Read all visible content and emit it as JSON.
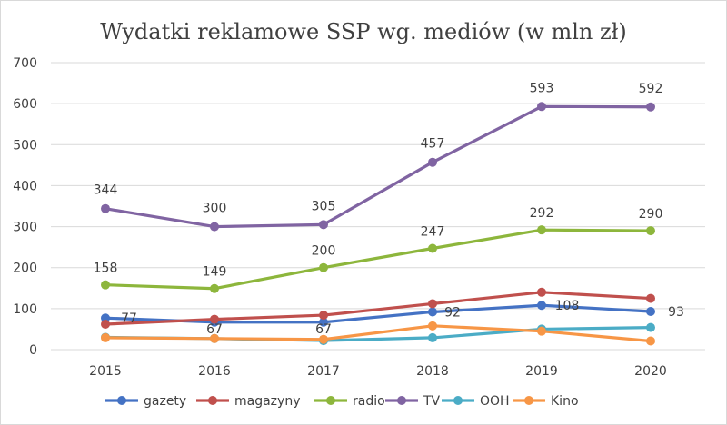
{
  "chart_data": {
    "type": "line",
    "title": "Wydatki reklamowe SSP wg. mediów (w mln zł)",
    "xlabel": "",
    "ylabel": "",
    "categories": [
      "2015",
      "2016",
      "2017",
      "2018",
      "2019",
      "2020"
    ],
    "ylim": [
      0,
      700
    ],
    "yticks": [
      0,
      100,
      200,
      300,
      400,
      500,
      600,
      700
    ],
    "grid": true,
    "legend": "bottom",
    "series": [
      {
        "name": "gazety",
        "color": "#4472C4",
        "values": [
          77,
          67,
          67,
          92,
          108,
          93
        ],
        "labels": [
          "77",
          "67",
          "67",
          "92",
          "108",
          "93"
        ]
      },
      {
        "name": "magazyny",
        "color": "#C0504D",
        "values": [
          62,
          74,
          84,
          112,
          140,
          125
        ],
        "labels": []
      },
      {
        "name": "radio",
        "color": "#8DB63C",
        "values": [
          158,
          149,
          200,
          247,
          292,
          290
        ],
        "labels": [
          "158",
          "149",
          "200",
          "247",
          "292",
          "290"
        ]
      },
      {
        "name": "TV",
        "color": "#8064A2",
        "values": [
          344,
          300,
          305,
          457,
          593,
          592
        ],
        "labels": [
          "344",
          "300",
          "305",
          "457",
          "593",
          "592"
        ]
      },
      {
        "name": "OOH",
        "color": "#4BACC6",
        "values": [
          30,
          27,
          22,
          29,
          50,
          54
        ],
        "labels": []
      },
      {
        "name": "Kino",
        "color": "#F79646",
        "values": [
          29,
          27,
          25,
          58,
          45,
          21
        ],
        "labels": []
      }
    ]
  }
}
